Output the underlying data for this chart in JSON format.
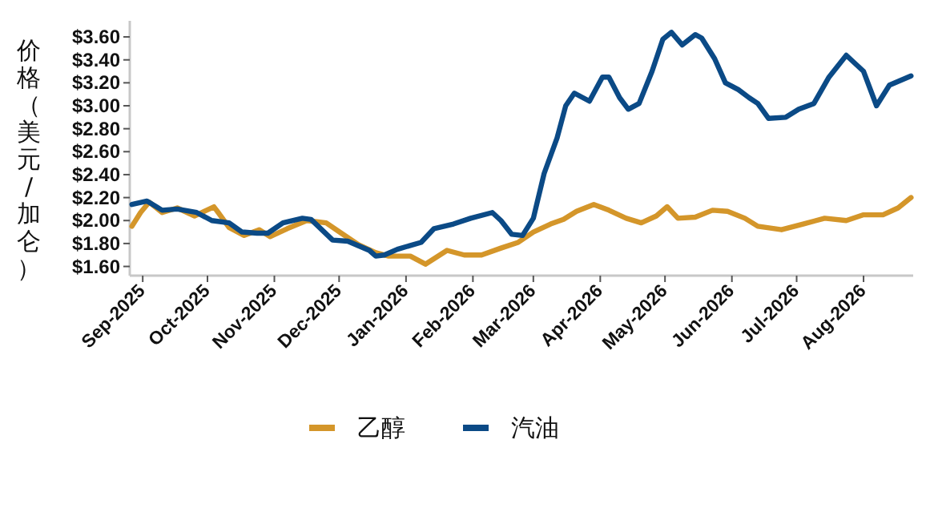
{
  "chart_data": {
    "type": "line",
    "ylabel": "价格（美元/加仑）",
    "legend": "bottom",
    "xlim": [
      "2025-08-26",
      "2026-08-24"
    ],
    "ylim": [
      1.52,
      3.74
    ],
    "xticks": [
      {
        "value": "2025-09-01",
        "label": "Sep-2025"
      },
      {
        "value": "2025-10-01",
        "label": "Oct-2025"
      },
      {
        "value": "2025-11-01",
        "label": "Nov-2025"
      },
      {
        "value": "2025-12-01",
        "label": "Dec-2025"
      },
      {
        "value": "2026-01-01",
        "label": "Jan-2026"
      },
      {
        "value": "2026-02-01",
        "label": "Feb-2026"
      },
      {
        "value": "2026-03-01",
        "label": "Mar-2026"
      },
      {
        "value": "2026-04-01",
        "label": "Apr-2026"
      },
      {
        "value": "2026-05-01",
        "label": "May-2026"
      },
      {
        "value": "2026-06-01",
        "label": "Jun-2026"
      },
      {
        "value": "2026-07-01",
        "label": "Jul-2026"
      },
      {
        "value": "2026-08-01",
        "label": "Aug-2026"
      }
    ],
    "yticks": [
      {
        "value": 1.6,
        "label": "$1.60"
      },
      {
        "value": 1.8,
        "label": "$1.80"
      },
      {
        "value": 2.0,
        "label": "$2.00"
      },
      {
        "value": 2.2,
        "label": "$2.20"
      },
      {
        "value": 2.4,
        "label": "$2.40"
      },
      {
        "value": 2.6,
        "label": "$2.60"
      },
      {
        "value": 2.8,
        "label": "$2.80"
      },
      {
        "value": 3.0,
        "label": "$3.00"
      },
      {
        "value": 3.2,
        "label": "$3.20"
      },
      {
        "value": 3.4,
        "label": "$3.40"
      },
      {
        "value": 3.6,
        "label": "$3.60"
      }
    ],
    "series": [
      {
        "name": "乙醇",
        "color": "#d4962a",
        "x": [
          "2025-08-27",
          "2025-08-31",
          "2025-09-04",
          "2025-09-10",
          "2025-09-17",
          "2025-09-25",
          "2025-10-04",
          "2025-10-06",
          "2025-10-11",
          "2025-10-18",
          "2025-10-25",
          "2025-10-30",
          "2025-11-07",
          "2025-11-16",
          "2025-11-25",
          "2025-12-02",
          "2025-12-10",
          "2025-12-18",
          "2025-12-24",
          "2026-01-03",
          "2026-01-10",
          "2026-01-20",
          "2026-01-28",
          "2026-02-05",
          "2026-02-14",
          "2026-02-22",
          "2026-03-01",
          "2026-03-09",
          "2026-03-15",
          "2026-03-21",
          "2026-03-29",
          "2026-04-05",
          "2026-04-13",
          "2026-04-20",
          "2026-04-27",
          "2026-05-02",
          "2026-05-07",
          "2026-05-15",
          "2026-05-23",
          "2026-05-30",
          "2026-06-07",
          "2026-06-13",
          "2026-06-24",
          "2026-07-04",
          "2026-07-14",
          "2026-07-24",
          "2026-08-01",
          "2026-08-10",
          "2026-08-17",
          "2026-08-23"
        ],
        "values": [
          1.95,
          2.07,
          2.16,
          2.07,
          2.11,
          2.04,
          2.12,
          2.07,
          1.94,
          1.87,
          1.92,
          1.86,
          1.93,
          2.0,
          1.98,
          1.89,
          1.79,
          1.72,
          1.69,
          1.69,
          1.62,
          1.74,
          1.7,
          1.7,
          1.76,
          1.81,
          1.9,
          1.97,
          2.01,
          2.08,
          2.14,
          2.09,
          2.02,
          1.98,
          2.04,
          2.12,
          2.02,
          2.03,
          2.09,
          2.08,
          2.02,
          1.95,
          1.92,
          1.97,
          2.02,
          2.0,
          2.05,
          2.05,
          2.11,
          2.2
        ]
      },
      {
        "name": "汽油",
        "color": "#0b4a86",
        "x": [
          "2025-08-27",
          "2025-09-03",
          "2025-09-10",
          "2025-09-17",
          "2025-09-26",
          "2025-10-03",
          "2025-10-11",
          "2025-10-17",
          "2025-10-24",
          "2025-10-29",
          "2025-11-05",
          "2025-11-14",
          "2025-11-18",
          "2025-11-28",
          "2025-12-05",
          "2025-12-15",
          "2025-12-18",
          "2025-12-22",
          "2025-12-28",
          "2026-01-08",
          "2026-01-14",
          "2026-01-23",
          "2026-01-31",
          "2026-02-10",
          "2026-02-14",
          "2026-02-19",
          "2026-02-24",
          "2026-03-01",
          "2026-03-06",
          "2026-03-12",
          "2026-03-16",
          "2026-03-20",
          "2026-03-27",
          "2026-04-02",
          "2026-04-05",
          "2026-04-10",
          "2026-04-14",
          "2026-04-19",
          "2026-04-25",
          "2026-04-30",
          "2026-05-04",
          "2026-05-09",
          "2026-05-15",
          "2026-05-18",
          "2026-05-24",
          "2026-05-29",
          "2026-06-04",
          "2026-06-09",
          "2026-06-13",
          "2026-06-18",
          "2026-06-26",
          "2026-07-02",
          "2026-07-09",
          "2026-07-16",
          "2026-07-24",
          "2026-08-01",
          "2026-08-07",
          "2026-08-13",
          "2026-08-23"
        ],
        "values": [
          2.14,
          2.17,
          2.09,
          2.1,
          2.07,
          2.0,
          1.98,
          1.9,
          1.89,
          1.89,
          1.98,
          2.02,
          2.01,
          1.83,
          1.82,
          1.74,
          1.69,
          1.7,
          1.75,
          1.81,
          1.93,
          1.97,
          2.02,
          2.07,
          2.0,
          1.88,
          1.87,
          2.02,
          2.41,
          2.72,
          3.0,
          3.11,
          3.04,
          3.25,
          3.25,
          3.07,
          2.97,
          3.02,
          3.3,
          3.58,
          3.64,
          3.53,
          3.62,
          3.59,
          3.41,
          3.2,
          3.14,
          3.07,
          3.02,
          2.89,
          2.9,
          2.97,
          3.02,
          3.25,
          3.44,
          3.3,
          3.0,
          3.18,
          3.26
        ]
      }
    ]
  }
}
